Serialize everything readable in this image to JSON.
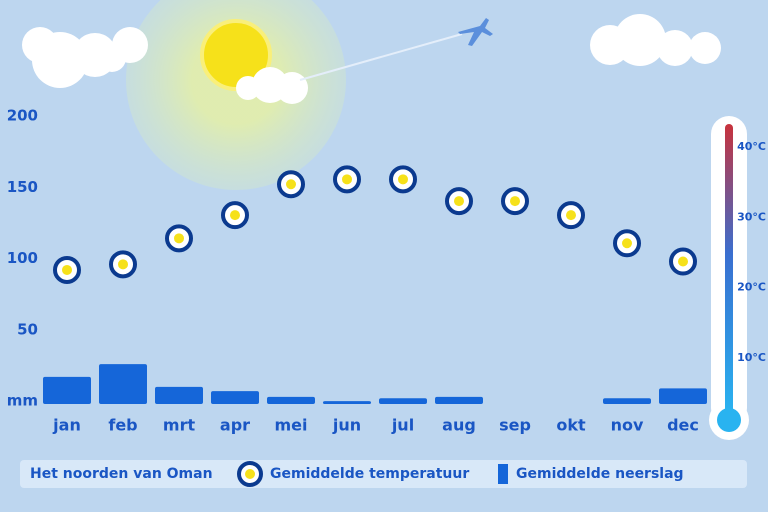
{
  "chart_data": {
    "type": "bar",
    "title": "Het noorden van Oman",
    "categories": [
      "jan",
      "feb",
      "mrt",
      "apr",
      "mei",
      "jun",
      "jul",
      "aug",
      "sep",
      "okt",
      "nov",
      "dec"
    ],
    "series": [
      {
        "name": "Gemiddelde neerslag",
        "type": "bar",
        "color": "#1566d9",
        "values": [
          19,
          28,
          12,
          9,
          5,
          2,
          4,
          5,
          0,
          0,
          4,
          11
        ]
      },
      {
        "name": "Gemiddelde temperatuur",
        "type": "scatter",
        "axis": "y2",
        "color": "#0b3a8f",
        "values": [
          22.5,
          23.3,
          27,
          30.3,
          34.7,
          35.4,
          35.4,
          32.3,
          32.3,
          30.3,
          26.3,
          23.7
        ]
      }
    ],
    "ylim": [
      0,
      200
    ],
    "yticks": [
      {
        "value": 0,
        "label": "mm"
      },
      50,
      100,
      150,
      200
    ],
    "y2lim": [
      0,
      40
    ],
    "y2ticks": [
      {
        "value": 10,
        "label": "10°C"
      },
      {
        "value": 20,
        "label": "20°C"
      },
      {
        "value": 30,
        "label": "30°C"
      },
      {
        "value": 40,
        "label": "40°C"
      }
    ]
  }
}
